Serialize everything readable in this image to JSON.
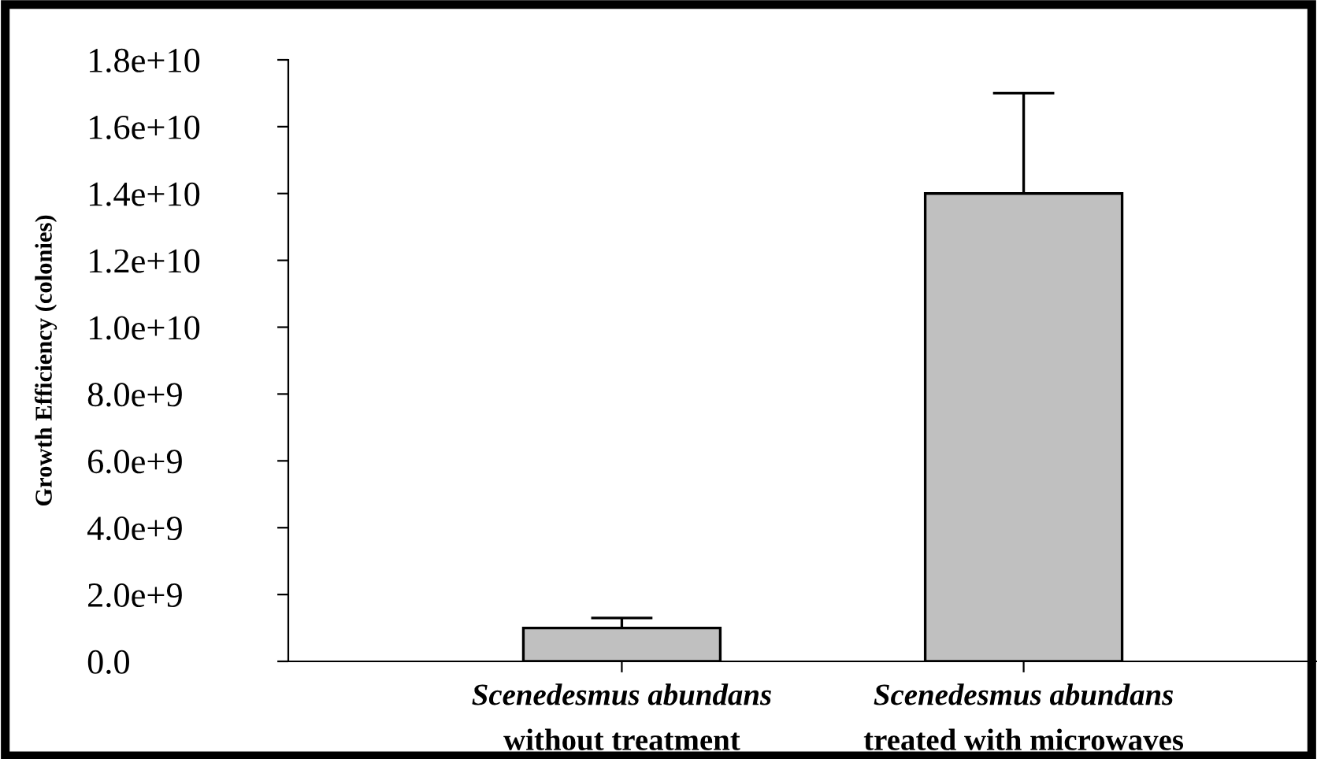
{
  "chart_data": {
    "type": "bar",
    "ylabel": "Growth Efficiency (colonies)",
    "categories": [
      "Scenedesmus abundans\nwithout treatment",
      "Scenedesmus abundans\ntreated with microwaves"
    ],
    "values": [
      1000000000.0,
      14000000000.0
    ],
    "errors": [
      [
        1000000000.0,
        1300000000.0
      ],
      [
        14000000000.0,
        17000000000.0
      ]
    ],
    "color": "#c0c0c0",
    "ylim": [
      0,
      18000000000.0
    ],
    "yticks": [
      {
        "value": 0,
        "label": "0.0"
      },
      {
        "value": 2000000000.0,
        "label": "2.0e+9"
      },
      {
        "value": 4000000000.0,
        "label": "4.0e+9"
      },
      {
        "value": 6000000000.0,
        "label": "6.0e+9"
      },
      {
        "value": 8000000000.0,
        "label": "8.0e+9"
      },
      {
        "value": 10000000000.0,
        "label": "1.0e+10"
      },
      {
        "value": 12000000000.0,
        "label": "1.2e+10"
      },
      {
        "value": 14000000000.0,
        "label": "1.4e+10"
      },
      {
        "value": 16000000000.0,
        "label": "1.6e+10"
      },
      {
        "value": 18000000000.0,
        "label": "1.8e+10"
      }
    ],
    "grid": false
  }
}
